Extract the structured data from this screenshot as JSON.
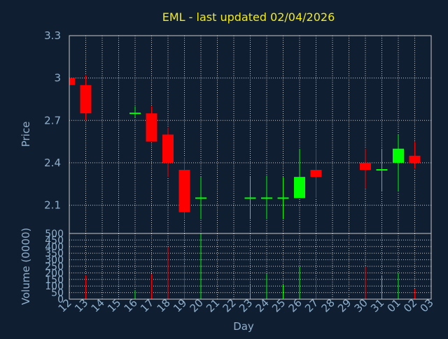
{
  "chart_data": {
    "type": "candlestick",
    "title": "EML - last updated 02/04/2026",
    "xlabel": "Day",
    "price_ylabel": "Price",
    "volume_ylabel": "Volume (0000)",
    "price_ylim": [
      1.9,
      3.3
    ],
    "price_yticks": [
      "2.1",
      "2.4",
      "2.7",
      "3",
      "3.3"
    ],
    "volume_ylim": [
      0,
      500
    ],
    "volume_yticks": [
      "0",
      "50",
      "100",
      "150",
      "200",
      "250",
      "300",
      "350",
      "400",
      "450",
      "500"
    ],
    "x_tick_labels": [
      "12",
      "13",
      "14",
      "15",
      "16",
      "17",
      "18",
      "19",
      "20",
      "21",
      "22",
      "23",
      "24",
      "25",
      "26",
      "27",
      "28",
      "29",
      "30",
      "31",
      "01",
      "02",
      "03"
    ],
    "grid": true,
    "colors": {
      "background": "#0f1e31",
      "up": "#00ff00",
      "down": "#ff0000",
      "title": "#f2ea1c",
      "axis_text": "#8fb0cc",
      "grid": "#c8c8c8"
    },
    "candles": [
      {
        "day": "12",
        "open": 3.0,
        "high": 3.0,
        "low": 2.95,
        "close": 2.95,
        "volume": 0
      },
      {
        "day": "13",
        "open": 2.95,
        "high": 3.02,
        "low": 2.7,
        "close": 2.75,
        "volume": 180
      },
      {
        "day": "16",
        "open": 2.75,
        "high": 2.8,
        "low": 2.72,
        "close": 2.75,
        "volume": 70
      },
      {
        "day": "17",
        "open": 2.75,
        "high": 2.8,
        "low": 2.55,
        "close": 2.55,
        "volume": 190
      },
      {
        "day": "18",
        "open": 2.6,
        "high": 2.65,
        "low": 2.3,
        "close": 2.4,
        "volume": 400
      },
      {
        "day": "19",
        "open": 2.35,
        "high": 2.44,
        "low": 2.0,
        "close": 2.05,
        "volume": 270
      },
      {
        "day": "20",
        "open": 2.15,
        "high": 2.3,
        "low": 2.0,
        "close": 2.15,
        "volume": 500
      },
      {
        "day": "23",
        "open": 2.15,
        "high": 2.3,
        "low": 2.0,
        "close": 2.15,
        "volume": 110
      },
      {
        "day": "24",
        "open": 2.15,
        "high": 2.31,
        "low": 2.0,
        "close": 2.15,
        "volume": 190
      },
      {
        "day": "25",
        "open": 2.15,
        "high": 2.3,
        "low": 2.0,
        "close": 2.15,
        "volume": 110
      },
      {
        "day": "26",
        "open": 2.15,
        "high": 2.5,
        "low": 2.15,
        "close": 2.3,
        "volume": 250
      },
      {
        "day": "27",
        "open": 2.35,
        "high": 2.5,
        "low": 2.15,
        "close": 2.3,
        "volume": 150
      },
      {
        "day": "30",
        "open": 2.4,
        "high": 2.5,
        "low": 2.22,
        "close": 2.35,
        "volume": 250
      },
      {
        "day": "31",
        "open": 2.35,
        "high": 2.5,
        "low": 2.2,
        "close": 2.35,
        "volume": 180
      },
      {
        "day": "01",
        "open": 2.4,
        "high": 2.6,
        "low": 2.2,
        "close": 2.5,
        "volume": 200
      },
      {
        "day": "02",
        "open": 2.45,
        "high": 2.55,
        "low": 2.36,
        "close": 2.4,
        "volume": 80
      }
    ]
  }
}
